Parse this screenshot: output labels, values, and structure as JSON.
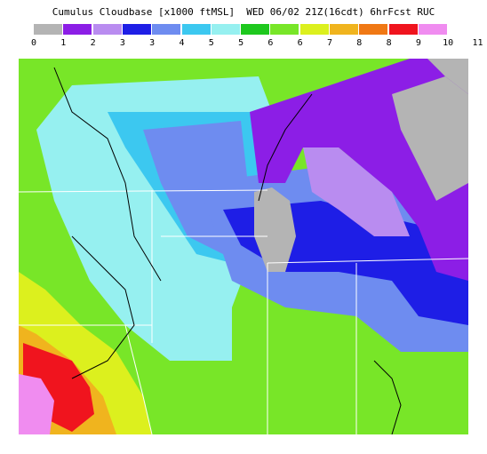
{
  "header": {
    "title": "Cumulus Cloudbase [x1000 ftMSL]  WED 06/02 21Z(16cdt) 6hrFcst RUC"
  },
  "legend": {
    "colors": [
      "#b4b4b4",
      "#8c1ee6",
      "#b98cf0",
      "#1e1ee6",
      "#6e8cf0",
      "#3cc8f0",
      "#96f0f0",
      "#1ec81e",
      "#78e628",
      "#dcf01e",
      "#f0b41e",
      "#f07814",
      "#f0141e",
      "#f08cf0"
    ],
    "ticks": [
      "0",
      "1",
      "2",
      "3",
      "3",
      "4",
      "5",
      "5",
      "6",
      "6",
      "7",
      "8",
      "8",
      "9",
      "10",
      "11"
    ]
  },
  "map": {
    "background_color": "#78e628",
    "water_color": "#b4b4b4"
  }
}
